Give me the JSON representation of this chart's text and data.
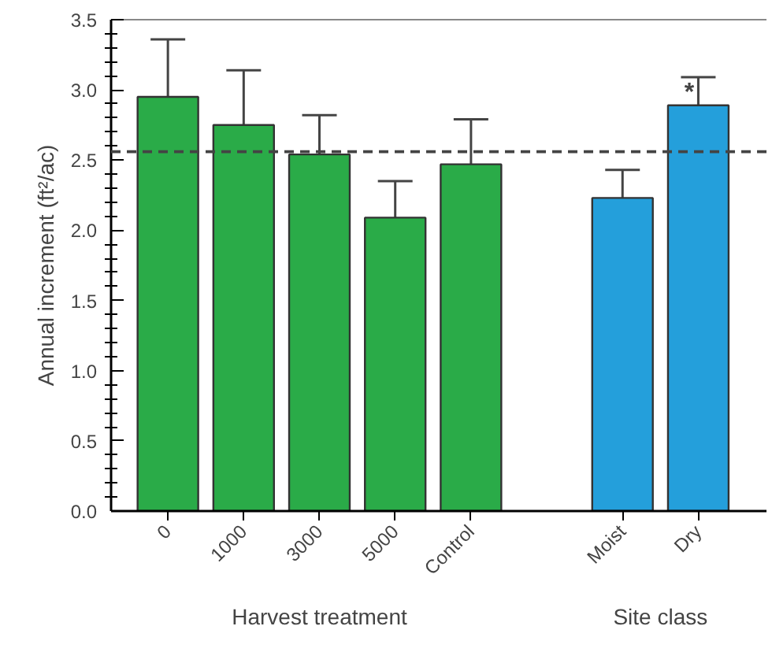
{
  "chart_data": {
    "type": "bar",
    "ylabel": "Annual increment (ft²/ac)",
    "categories": [
      "0",
      "1000",
      "3000",
      "5000",
      "Control",
      null,
      "Moist",
      "Dry"
    ],
    "values": [
      2.95,
      2.75,
      2.54,
      2.09,
      2.47,
      null,
      2.23,
      2.89
    ],
    "colors": [
      "#2aab48",
      "#2aab48",
      "#2aab48",
      "#2aab48",
      "#2aab48",
      null,
      "#249fdb",
      "#249fdb"
    ],
    "errors": [
      [
        2.95,
        3.36
      ],
      [
        2.75,
        3.14
      ],
      [
        2.54,
        2.82
      ],
      [
        2.09,
        2.35
      ],
      [
        2.47,
        2.79
      ],
      null,
      [
        2.23,
        2.43
      ],
      [
        2.89,
        3.09
      ]
    ],
    "ylim": [
      0,
      3.5
    ],
    "yticks": [
      {
        "value": 0,
        "label": "0.0"
      },
      0.5,
      {
        "value": 1,
        "label": "1.0"
      },
      1.5,
      {
        "value": 2,
        "label": "2.0"
      },
      2.5,
      {
        "value": 3,
        "label": "3.0"
      },
      3.5
    ],
    "ref_lines": [
      {
        "axis": "y",
        "value": 2.56,
        "label": null,
        "color": "#444444",
        "line_style": "dashed"
      }
    ],
    "annotations": [
      {
        "text": "*",
        "x": "Dry",
        "y": 2.98
      },
      "Harvest treatment",
      "Site class"
    ],
    "grid": false
  }
}
